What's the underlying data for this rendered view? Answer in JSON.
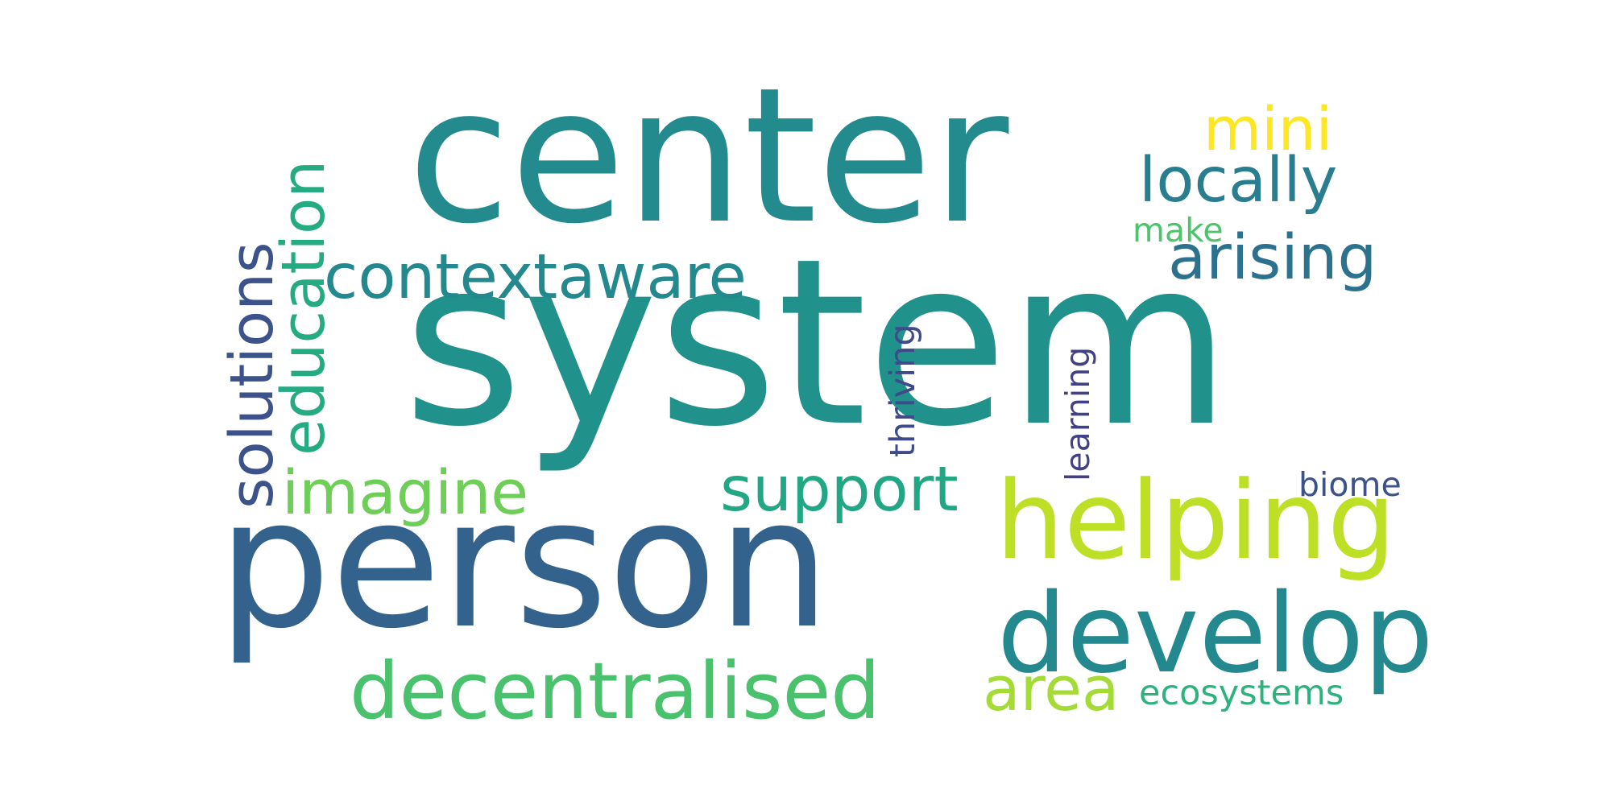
{
  "word_cloud": {
    "words": [
      {
        "text": "system",
        "color": "#21918c",
        "orientation": "horizontal"
      },
      {
        "text": "center",
        "color": "#238a8d",
        "orientation": "horizontal"
      },
      {
        "text": "person",
        "color": "#33638d",
        "orientation": "horizontal"
      },
      {
        "text": "helping",
        "color": "#bddf26",
        "orientation": "horizontal"
      },
      {
        "text": "develop",
        "color": "#23898e",
        "orientation": "horizontal"
      },
      {
        "text": "decentralised",
        "color": "#4ac16d",
        "orientation": "horizontal"
      },
      {
        "text": "solutions",
        "color": "#3b528b",
        "orientation": "vertical"
      },
      {
        "text": "education",
        "color": "#25ab82",
        "orientation": "vertical"
      },
      {
        "text": "contextaware",
        "color": "#23898e",
        "orientation": "horizontal"
      },
      {
        "text": "imagine",
        "color": "#6ece58",
        "orientation": "horizontal"
      },
      {
        "text": "support",
        "color": "#22a785",
        "orientation": "horizontal"
      },
      {
        "text": "locally",
        "color": "#287d8e",
        "orientation": "horizontal"
      },
      {
        "text": "arising",
        "color": "#2c728e",
        "orientation": "horizontal"
      },
      {
        "text": "mini",
        "color": "#fde725",
        "orientation": "horizontal"
      },
      {
        "text": "area",
        "color": "#a5db36",
        "orientation": "horizontal"
      },
      {
        "text": "ecosystems",
        "color": "#2db27d",
        "orientation": "horizontal"
      },
      {
        "text": "make",
        "color": "#4ec36b",
        "orientation": "horizontal"
      },
      {
        "text": "thriving",
        "color": "#3e4a89",
        "orientation": "vertical"
      },
      {
        "text": "learning",
        "color": "#424086",
        "orientation": "vertical"
      },
      {
        "text": "biome",
        "color": "#3b528b",
        "orientation": "horizontal"
      }
    ]
  }
}
